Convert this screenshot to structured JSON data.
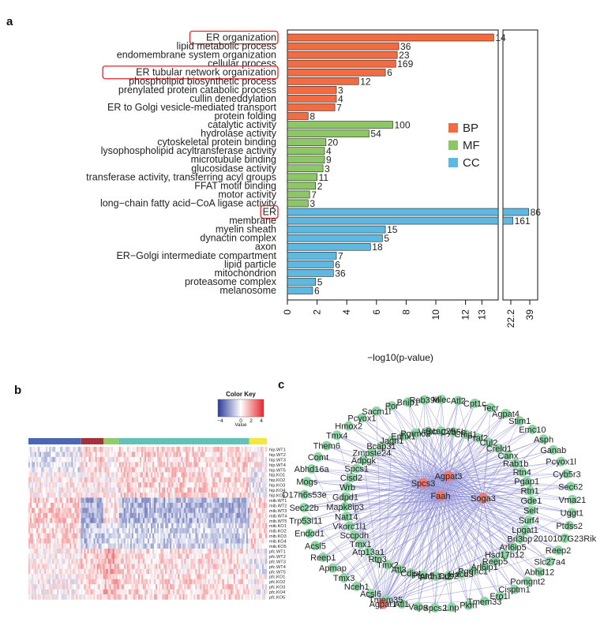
{
  "panels": {
    "a": "a",
    "b": "b",
    "c": "c"
  },
  "chart_data": [
    {
      "type": "bar",
      "orientation": "horizontal",
      "xlabel": "−log10(p-value)",
      "axis_ticks": [
        "0",
        "2",
        "4",
        "6",
        "8",
        "10",
        "12",
        "13",
        "22.2",
        "39"
      ],
      "broken_axis": true,
      "legend": [
        {
          "name": "BP",
          "color": "#f26b42"
        },
        {
          "name": "MF",
          "color": "#8cc665"
        },
        {
          "name": "CC",
          "color": "#5fb8e0"
        }
      ],
      "legend_position": "right",
      "highlighted_terms": [
        "ER organization",
        "ER tubular network organization",
        "ER"
      ],
      "terms": [
        {
          "label": "ER organization",
          "category": "BP",
          "value": 13.9,
          "count": "14",
          "highlight": true
        },
        {
          "label": "lipid metabolic process",
          "category": "BP",
          "value": 7.5,
          "count": "36"
        },
        {
          "label": "endomembrane system organization",
          "category": "BP",
          "value": 7.4,
          "count": "23"
        },
        {
          "label": "cellular process",
          "category": "BP",
          "value": 7.3,
          "count": "169"
        },
        {
          "label": "ER tubular network organization",
          "category": "BP",
          "value": 6.6,
          "count": "6",
          "highlight": true
        },
        {
          "label": "phospholipid biosynthetic process",
          "category": "BP",
          "value": 4.8,
          "count": "12"
        },
        {
          "label": "prenylated protein catabolic process",
          "category": "BP",
          "value": 3.3,
          "count": "3"
        },
        {
          "label": "cullin deneddylation",
          "category": "BP",
          "value": 3.3,
          "count": "4"
        },
        {
          "label": "ER to Golgi vesicle-mediated transport",
          "category": "BP",
          "value": 3.2,
          "count": "7"
        },
        {
          "label": "protein folding",
          "category": "BP",
          "value": 1.4,
          "count": "8"
        },
        {
          "label": "catalytic activity",
          "category": "MF",
          "value": 7.1,
          "count": "100"
        },
        {
          "label": "hydrolase activity",
          "category": "MF",
          "value": 5.5,
          "count": "54"
        },
        {
          "label": "cytoskeletal protein binding",
          "category": "MF",
          "value": 2.6,
          "count": "20"
        },
        {
          "label": "lysophospholipid acyltransferase activity",
          "category": "MF",
          "value": 2.5,
          "count": "4"
        },
        {
          "label": "microtubule binding",
          "category": "MF",
          "value": 2.5,
          "count": "9"
        },
        {
          "label": "glucosidase activity",
          "category": "MF",
          "value": 2.4,
          "count": "3"
        },
        {
          "label": "transferase activity, transferring acyl groups",
          "category": "MF",
          "value": 2.0,
          "count": "11"
        },
        {
          "label": "FFAT motif binding",
          "category": "MF",
          "value": 1.9,
          "count": "2"
        },
        {
          "label": "motor activity",
          "category": "MF",
          "value": 1.5,
          "count": "7"
        },
        {
          "label": "long−chain fatty acid−CoA ligase activity",
          "category": "MF",
          "value": 1.4,
          "count": "3"
        },
        {
          "label": "ER",
          "category": "CC",
          "value": 38,
          "count": "86",
          "highlight": true
        },
        {
          "label": "membrane",
          "category": "CC",
          "value": 24,
          "count": "161"
        },
        {
          "label": "myelin sheath",
          "category": "CC",
          "value": 6.6,
          "count": "15"
        },
        {
          "label": "dynactin complex",
          "category": "CC",
          "value": 6.4,
          "count": "5"
        },
        {
          "label": "axon",
          "category": "CC",
          "value": 5.6,
          "count": "18"
        },
        {
          "label": "ER−Golgi intermediate compartment",
          "category": "CC",
          "value": 3.3,
          "count": "7"
        },
        {
          "label": "lipid particle",
          "category": "CC",
          "value": 3.1,
          "count": "6"
        },
        {
          "label": "mitochondrion",
          "category": "CC",
          "value": 3.1,
          "count": "36"
        },
        {
          "label": "proteasome complex",
          "category": "CC",
          "value": 1.9,
          "count": "5"
        },
        {
          "label": "melanosome",
          "category": "CC",
          "value": 1.7,
          "count": "6"
        }
      ]
    },
    {
      "type": "heatmap",
      "color_key": {
        "title": "Color Key",
        "label": "Value",
        "ticks": [
          "−4",
          "0",
          "2",
          "4"
        ],
        "low": "#2b3a9b",
        "mid": "#ffffff",
        "high": "#e5262b"
      },
      "column_groups": [
        {
          "color": "#3f5cb0",
          "share": 0.21
        },
        {
          "color": "#a3232a",
          "share": 0.09
        },
        {
          "color": "#8cc665",
          "share": 0.06
        },
        {
          "color": "#56bfb5",
          "share": 0.52
        },
        {
          "color": "#f2e43a",
          "share": 0.07
        }
      ],
      "rows": [
        "hip.WT1",
        "hip.WT2",
        "hip.WT3",
        "hip.WT4",
        "hip.WT5",
        "hip.KO1",
        "hip.KO2",
        "hip.KO3",
        "hip.KO4",
        "hip.KO5",
        "mib.WT1",
        "mib.WT2",
        "mib.WT3",
        "mib.WT4",
        "mib.WT5",
        "mib.KO1",
        "mib.KO2",
        "mib.KO3",
        "mib.KO4",
        "mib.KO5",
        "pfc.WT1",
        "pfc.WT2",
        "pfc.WT3",
        "pfc.WT4",
        "pfc.WT5",
        "pfc.KO1",
        "pfc.KO2",
        "pfc.KO3",
        "pfc.KO4",
        "pfc.KO5"
      ]
    },
    {
      "type": "network",
      "hub_color": "#ef7a74",
      "node_color": "#8fd6a6",
      "edge_color": "#8c8cd6",
      "hubs": [
        "Agpat3",
        "Spcs3",
        "Faah",
        "Soga3",
        "Agpat1"
      ],
      "nodes": [
        "Atl2",
        "Cpt1c",
        "Tecr",
        "Agpat4",
        "Stim1",
        "Emc10",
        "Asph",
        "Ganab",
        "Pcyox1l",
        "Cyb5r3",
        "Sec62",
        "Vma21",
        "Uggt1",
        "Ptdss2",
        "2010107G23Rik",
        "Reep2",
        "Slc27a4",
        "Abhd12",
        "Pomgnt2",
        "Cisptm1",
        "Ero1l",
        "Tmem33",
        "Pkm",
        "Lnp",
        "Spcs2",
        "Vapa",
        "Atl1",
        "Tmem35",
        "Acsl6",
        "Nceh1",
        "Tmx3",
        "Apmap",
        "Reep1",
        "Acsl5",
        "Endod1",
        "Trp53i11",
        "Sec22b",
        "D17h6s53e",
        "Mogs",
        "Abhd16a",
        "Comt",
        "Them6",
        "Tmx4",
        "Hmox2",
        "Pcyox1",
        "Sacm1l",
        "Por",
        "Bnip1",
        "Rab39b",
        "Mlec",
        "Chid1",
        "Praf2",
        "Cul2",
        "Creld1",
        "Canx",
        "Rab1b",
        "Rtn4",
        "Pgap1",
        "Rtn1",
        "Gde1",
        "Selt",
        "Surf4",
        "Lpgat1",
        "Bri3bp",
        "Arl6ip5",
        "Hsd17b12",
        "Reep5",
        "Arl6ip1",
        "Pgrmc1",
        "Hacd3",
        "Cds2",
        "Aldh3a2",
        "Ptpn5",
        "Cdipt",
        "Atl3",
        "Tmx2",
        "Rtn3",
        "Atp13a1",
        "Tmx1",
        "Sccpdh",
        "Vkorc1l1",
        "Nat14",
        "Mapk8ip3",
        "Gdpd1",
        "Wrb",
        "Cisd2",
        "Spcs1",
        "Adpgk",
        "Zmpste24",
        "Bcap31",
        "Jagn1",
        "Ephx1",
        "Pgrmc2",
        "Vapb",
        "Bcap29",
        "Cyb5b"
      ]
    }
  ]
}
